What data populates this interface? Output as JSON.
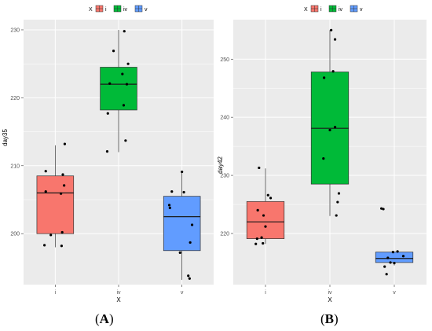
{
  "chart_data": [
    {
      "type": "box",
      "panel_label": "A",
      "xlabel": "X",
      "ylabel": "day35",
      "categories": [
        "i",
        "iv",
        "v"
      ],
      "yticks": [
        200,
        210,
        220,
        230
      ],
      "ylim": [
        192.5,
        231.5
      ],
      "legend": {
        "title": "X",
        "position": "top",
        "entries": [
          "i",
          "iv",
          "v"
        ]
      },
      "grid": true,
      "boxes": [
        {
          "category": "i",
          "min": 198,
          "q1": 200,
          "median": 206,
          "q3": 208.5,
          "max": 213
        },
        {
          "category": "iv",
          "min": 212,
          "q1": 218.2,
          "median": 222,
          "q3": 224.5,
          "max": 230
        },
        {
          "category": "v",
          "min": 193.2,
          "q1": 197.5,
          "median": 202.5,
          "q3": 205.5,
          "max": 209
        }
      ],
      "points": [
        {
          "category": "i",
          "y": 213.2,
          "jitter": 0.15
        },
        {
          "category": "i",
          "y": 209.2,
          "jitter": -0.15
        },
        {
          "category": "i",
          "y": 208.7,
          "jitter": 0.12
        },
        {
          "category": "i",
          "y": 207.1,
          "jitter": 0.14
        },
        {
          "category": "i",
          "y": 206.2,
          "jitter": -0.15
        },
        {
          "category": "i",
          "y": 205.9,
          "jitter": 0.09
        },
        {
          "category": "i",
          "y": 200.2,
          "jitter": 0.11
        },
        {
          "category": "i",
          "y": 199.8,
          "jitter": -0.07
        },
        {
          "category": "i",
          "y": 198.3,
          "jitter": -0.17
        },
        {
          "category": "i",
          "y": 198.2,
          "jitter": 0.1
        },
        {
          "category": "iv",
          "y": 229.8,
          "jitter": 0.09
        },
        {
          "category": "iv",
          "y": 226.9,
          "jitter": -0.08
        },
        {
          "category": "iv",
          "y": 225.0,
          "jitter": 0.15
        },
        {
          "category": "iv",
          "y": 223.5,
          "jitter": 0.06
        },
        {
          "category": "iv",
          "y": 222.1,
          "jitter": -0.14
        },
        {
          "category": "iv",
          "y": 222.0,
          "jitter": 0.13
        },
        {
          "category": "iv",
          "y": 218.9,
          "jitter": 0.08
        },
        {
          "category": "iv",
          "y": 217.7,
          "jitter": -0.17
        },
        {
          "category": "iv",
          "y": 213.7,
          "jitter": 0.11
        },
        {
          "category": "iv",
          "y": 212.1,
          "jitter": -0.18
        },
        {
          "category": "v",
          "y": 209.1,
          "jitter": 0.0
        },
        {
          "category": "v",
          "y": 206.2,
          "jitter": -0.16
        },
        {
          "category": "v",
          "y": 206.1,
          "jitter": 0.03
        },
        {
          "category": "v",
          "y": 204.2,
          "jitter": -0.2
        },
        {
          "category": "v",
          "y": 203.8,
          "jitter": -0.19
        },
        {
          "category": "v",
          "y": 201.3,
          "jitter": 0.16
        },
        {
          "category": "v",
          "y": 198.7,
          "jitter": 0.13
        },
        {
          "category": "v",
          "y": 197.2,
          "jitter": -0.03
        },
        {
          "category": "v",
          "y": 193.8,
          "jitter": 0.1
        },
        {
          "category": "v",
          "y": 193.4,
          "jitter": 0.12
        }
      ]
    },
    {
      "type": "box",
      "panel_label": "B",
      "xlabel": "X",
      "ylabel": "day42",
      "categories": [
        "i",
        "iv",
        "v"
      ],
      "yticks": [
        220,
        230,
        240,
        250
      ],
      "ylim": [
        211.2,
        256.8
      ],
      "legend": {
        "title": "X",
        "position": "top",
        "entries": [
          "i",
          "iv",
          "v"
        ]
      },
      "grid": true,
      "boxes": [
        {
          "category": "i",
          "min": 218.2,
          "q1": 219.1,
          "median": 222.0,
          "q3": 225.5,
          "max": 231.2
        },
        {
          "category": "iv",
          "min": 223.0,
          "q1": 228.5,
          "median": 238.1,
          "q3": 247.8,
          "max": 255.0
        },
        {
          "category": "v",
          "min": 214.5,
          "q1": 215.0,
          "median": 215.7,
          "q3": 216.8,
          "max": 216.8
        }
      ],
      "points": [
        {
          "category": "i",
          "y": 231.3,
          "jitter": -0.1
        },
        {
          "category": "i",
          "y": 226.6,
          "jitter": 0.04
        },
        {
          "category": "i",
          "y": 226.1,
          "jitter": 0.08
        },
        {
          "category": "i",
          "y": 224.0,
          "jitter": -0.12
        },
        {
          "category": "i",
          "y": 223.1,
          "jitter": -0.03
        },
        {
          "category": "i",
          "y": 221.2,
          "jitter": 0.0
        },
        {
          "category": "i",
          "y": 219.3,
          "jitter": -0.06
        },
        {
          "category": "i",
          "y": 219.1,
          "jitter": -0.13
        },
        {
          "category": "i",
          "y": 218.3,
          "jitter": -0.04
        },
        {
          "category": "i",
          "y": 218.2,
          "jitter": -0.15
        },
        {
          "category": "iv",
          "y": 255.0,
          "jitter": 0.02
        },
        {
          "category": "iv",
          "y": 253.4,
          "jitter": 0.08
        },
        {
          "category": "iv",
          "y": 247.9,
          "jitter": 0.05
        },
        {
          "category": "iv",
          "y": 246.8,
          "jitter": -0.09
        },
        {
          "category": "iv",
          "y": 238.3,
          "jitter": 0.08
        },
        {
          "category": "iv",
          "y": 237.8,
          "jitter": 0.0
        },
        {
          "category": "iv",
          "y": 232.9,
          "jitter": -0.1
        },
        {
          "category": "iv",
          "y": 226.9,
          "jitter": 0.14
        },
        {
          "category": "iv",
          "y": 225.4,
          "jitter": 0.12
        },
        {
          "category": "iv",
          "y": 223.1,
          "jitter": 0.1
        },
        {
          "category": "v",
          "y": 224.3,
          "jitter": -0.2
        },
        {
          "category": "v",
          "y": 224.2,
          "jitter": -0.17
        },
        {
          "category": "v",
          "y": 216.9,
          "jitter": 0.05
        },
        {
          "category": "v",
          "y": 216.8,
          "jitter": -0.02
        },
        {
          "category": "v",
          "y": 216.1,
          "jitter": 0.14
        },
        {
          "category": "v",
          "y": 215.8,
          "jitter": -0.1
        },
        {
          "category": "v",
          "y": 215.0,
          "jitter": -0.06
        },
        {
          "category": "v",
          "y": 214.9,
          "jitter": 0.0
        },
        {
          "category": "v",
          "y": 214.3,
          "jitter": -0.15
        },
        {
          "category": "v",
          "y": 213.0,
          "jitter": -0.12
        }
      ]
    }
  ],
  "colors": {
    "i": "#F8766D",
    "iv": "#00BA38",
    "v": "#619CFF",
    "panel_bg": "#EBEBEB",
    "grid": "#FFFFFF"
  },
  "panel_labels": [
    "A",
    "B"
  ]
}
